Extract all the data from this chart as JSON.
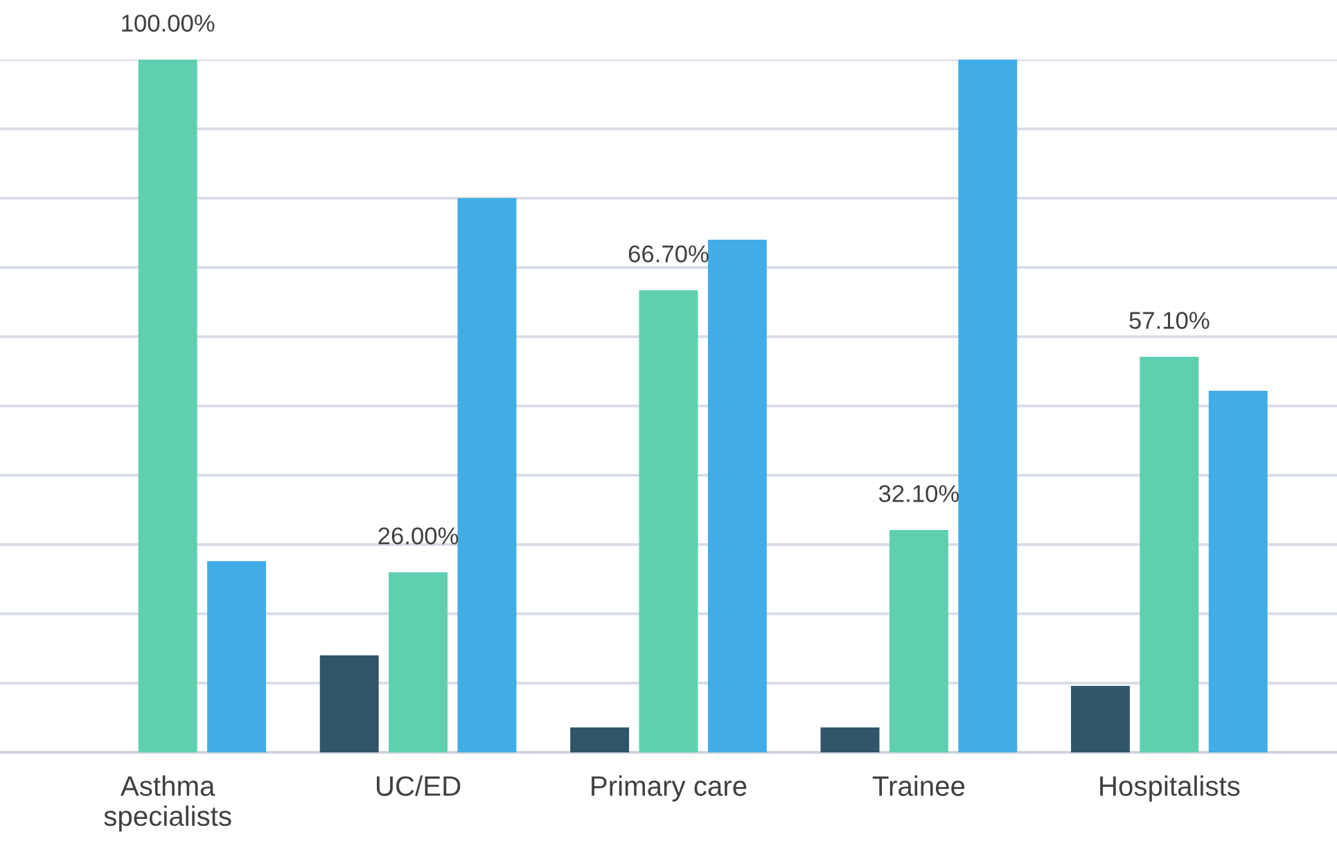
{
  "chart_data": {
    "type": "bar",
    "categories": [
      "Asthma\nspecialists",
      "UC/ED",
      "Primary care",
      "Trainee",
      "Hospitalists"
    ],
    "series": [
      {
        "color": "#2f5668",
        "values": [
          0,
          14,
          3.6,
          3.6,
          9.6
        ]
      },
      {
        "color": "#5fcfb0",
        "values": [
          100,
          26,
          66.7,
          32.1,
          57.1
        ],
        "value_labels": [
          "100.00%",
          "26.00%",
          "66.70%",
          "32.10%",
          "57.10%"
        ]
      },
      {
        "color": "#41ade6",
        "values": [
          27.6,
          80,
          74,
          100,
          52.2
        ]
      }
    ],
    "ylim": [
      0,
      100
    ],
    "yticks": [
      {
        "value": 0,
        "label": null
      },
      {
        "value": 10,
        "label": null
      },
      {
        "value": 20,
        "label": null
      },
      {
        "value": 30,
        "label": null
      },
      {
        "value": 40,
        "label": null
      },
      {
        "value": 50,
        "label": null
      },
      {
        "value": 60,
        "label": null
      },
      {
        "value": 70,
        "label": null
      },
      {
        "value": 80,
        "label": null
      },
      {
        "value": 90,
        "label": null
      },
      {
        "value": 100,
        "label": null
      }
    ],
    "grid": "y",
    "tick_labels": "x"
  }
}
